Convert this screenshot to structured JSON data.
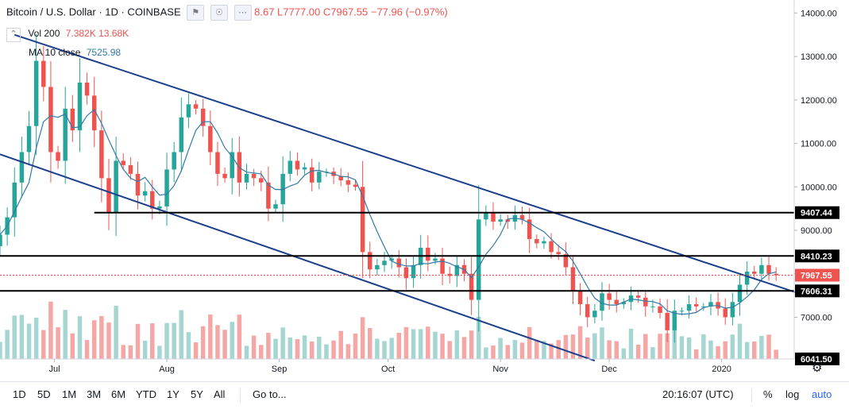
{
  "legend": {
    "symbol": "Bitcoin / U.S. Dollar · 1D · COINBASE",
    "ohlc": "8.67 L7777.00 C7967.55 −77.96 (−0.97%)",
    "vol_label": "Vol 200",
    "vol_values": "7.382K 13.68K",
    "ma_label": "MA 10 close",
    "ma_value": "7525.98"
  },
  "toolbar": {
    "timeframes": [
      "1D",
      "5D",
      "1M",
      "3M",
      "6M",
      "YTD",
      "1Y",
      "5Y",
      "All"
    ],
    "goto": "Go to...",
    "clock": "20:16:07 (UTC)",
    "percent": "%",
    "log": "log",
    "auto": "auto"
  },
  "colors": {
    "up": "#26a69a",
    "down": "#ef5350",
    "vol_up": "#a5d6d1",
    "vol_down": "#f5a7a5",
    "ma": "#3179a8",
    "trend": "#1c3f8c",
    "level": "#000000",
    "grid": "#ffffff",
    "axis_text": "#131722"
  },
  "chart_data": {
    "type": "candlestick",
    "title": "Bitcoin / U.S. Dollar · 1D · COINBASE",
    "x_labels": [
      "Jul",
      "Aug",
      "Sep",
      "Oct",
      "Nov",
      "Dec",
      "2020"
    ],
    "y_ticks": [
      7000,
      8000,
      9000,
      10000,
      11000,
      12000,
      13000,
      14000
    ],
    "y_tick_labels": [
      "7000.00",
      "8000.00",
      "9000.00",
      "10000.00",
      "11000.00",
      "12000.00",
      "13000.00",
      "14000.00"
    ],
    "ylim": [
      6040,
      14300
    ],
    "x_range": [
      "2019-06-16",
      "2020-01-21"
    ],
    "last_close": 7967.55,
    "ma_10_close": 7525.98,
    "price_labels": [
      {
        "text": "9407.44",
        "value": 9407.44,
        "type": "level"
      },
      {
        "text": "8410.23",
        "value": 8410.23,
        "type": "level"
      },
      {
        "text": "7967.55",
        "value": 7967.55,
        "type": "last"
      },
      {
        "text": "7606.31",
        "value": 7606.31,
        "type": "level"
      },
      {
        "text": "6041.50",
        "value": 6041.5,
        "type": "level"
      }
    ],
    "horizontal_levels": [
      {
        "value": 9407.44,
        "start": "2019-07-12"
      },
      {
        "value": 8410.23,
        "start": "2019-06-16"
      },
      {
        "value": 7606.31,
        "start": "2019-06-16"
      }
    ],
    "trendlines": [
      {
        "name": "upper",
        "points": [
          [
            "2019-06-20",
            13500
          ],
          [
            "2020-01-23",
            7530
          ]
        ]
      },
      {
        "name": "lower",
        "points": [
          [
            "2019-06-16",
            10750
          ],
          [
            "2019-11-27",
            6000
          ]
        ]
      }
    ],
    "closes": [
      {
        "date": "2019-06-16",
        "close": 8900
      },
      {
        "date": "2019-06-18",
        "close": 9300
      },
      {
        "date": "2019-06-20",
        "close": 10100
      },
      {
        "date": "2019-06-22",
        "close": 10800
      },
      {
        "date": "2019-06-24",
        "close": 11400
      },
      {
        "date": "2019-06-26",
        "close": 12900
      },
      {
        "date": "2019-06-28",
        "close": 12300
      },
      {
        "date": "2019-06-30",
        "close": 10800
      },
      {
        "date": "2019-07-02",
        "close": 10600
      },
      {
        "date": "2019-07-04",
        "close": 11800
      },
      {
        "date": "2019-07-06",
        "close": 11300
      },
      {
        "date": "2019-07-08",
        "close": 12400
      },
      {
        "date": "2019-07-10",
        "close": 12100
      },
      {
        "date": "2019-07-12",
        "close": 11300
      },
      {
        "date": "2019-07-14",
        "close": 10200
      },
      {
        "date": "2019-07-16",
        "close": 9400
      },
      {
        "date": "2019-07-18",
        "close": 10600
      },
      {
        "date": "2019-07-20",
        "close": 10500
      },
      {
        "date": "2019-07-22",
        "close": 10300
      },
      {
        "date": "2019-07-24",
        "close": 9800
      },
      {
        "date": "2019-07-26",
        "close": 9900
      },
      {
        "date": "2019-07-28",
        "close": 9500
      },
      {
        "date": "2019-07-30",
        "close": 9550
      },
      {
        "date": "2019-08-01",
        "close": 10400
      },
      {
        "date": "2019-08-03",
        "close": 10800
      },
      {
        "date": "2019-08-05",
        "close": 11600
      },
      {
        "date": "2019-08-07",
        "close": 11900
      },
      {
        "date": "2019-08-09",
        "close": 11800
      },
      {
        "date": "2019-08-11",
        "close": 11400
      },
      {
        "date": "2019-08-13",
        "close": 10800
      },
      {
        "date": "2019-08-15",
        "close": 10300
      },
      {
        "date": "2019-08-17",
        "close": 10200
      },
      {
        "date": "2019-08-19",
        "close": 10800
      },
      {
        "date": "2019-08-21",
        "close": 10100
      },
      {
        "date": "2019-08-23",
        "close": 10300
      },
      {
        "date": "2019-08-25",
        "close": 10200
      },
      {
        "date": "2019-08-27",
        "close": 10100
      },
      {
        "date": "2019-08-29",
        "close": 9500
      },
      {
        "date": "2019-08-31",
        "close": 9600
      },
      {
        "date": "2019-09-02",
        "close": 10300
      },
      {
        "date": "2019-09-04",
        "close": 10600
      },
      {
        "date": "2019-09-06",
        "close": 10400
      },
      {
        "date": "2019-09-08",
        "close": 10450
      },
      {
        "date": "2019-09-10",
        "close": 10100
      },
      {
        "date": "2019-09-12",
        "close": 10350
      },
      {
        "date": "2019-09-14",
        "close": 10350
      },
      {
        "date": "2019-09-16",
        "close": 10250
      },
      {
        "date": "2019-09-18",
        "close": 10150
      },
      {
        "date": "2019-09-20",
        "close": 10050
      },
      {
        "date": "2019-09-22",
        "close": 10000
      },
      {
        "date": "2019-09-24",
        "close": 8500
      },
      {
        "date": "2019-09-26",
        "close": 8100
      },
      {
        "date": "2019-09-28",
        "close": 8200
      },
      {
        "date": "2019-09-30",
        "close": 8300
      },
      {
        "date": "2019-10-02",
        "close": 8350
      },
      {
        "date": "2019-10-04",
        "close": 8150
      },
      {
        "date": "2019-10-06",
        "close": 7900
      },
      {
        "date": "2019-10-08",
        "close": 8200
      },
      {
        "date": "2019-10-10",
        "close": 8600
      },
      {
        "date": "2019-10-12",
        "close": 8300
      },
      {
        "date": "2019-10-14",
        "close": 8350
      },
      {
        "date": "2019-10-16",
        "close": 8000
      },
      {
        "date": "2019-10-18",
        "close": 7950
      },
      {
        "date": "2019-10-20",
        "close": 8200
      },
      {
        "date": "2019-10-22",
        "close": 8000
      },
      {
        "date": "2019-10-24",
        "close": 7400
      },
      {
        "date": "2019-10-26",
        "close": 9250
      },
      {
        "date": "2019-10-28",
        "close": 9400
      },
      {
        "date": "2019-10-30",
        "close": 9200
      },
      {
        "date": "2019-11-01",
        "close": 9250
      },
      {
        "date": "2019-11-03",
        "close": 9200
      },
      {
        "date": "2019-11-05",
        "close": 9350
      },
      {
        "date": "2019-11-07",
        "close": 9250
      },
      {
        "date": "2019-11-09",
        "close": 8800
      },
      {
        "date": "2019-11-11",
        "close": 8700
      },
      {
        "date": "2019-11-13",
        "close": 8750
      },
      {
        "date": "2019-11-15",
        "close": 8500
      },
      {
        "date": "2019-11-17",
        "close": 8450
      },
      {
        "date": "2019-11-19",
        "close": 8150
      },
      {
        "date": "2019-11-21",
        "close": 7600
      },
      {
        "date": "2019-11-23",
        "close": 7300
      },
      {
        "date": "2019-11-25",
        "close": 7000
      },
      {
        "date": "2019-11-27",
        "close": 7150
      },
      {
        "date": "2019-11-29",
        "close": 7550
      },
      {
        "date": "2019-12-01",
        "close": 7400
      },
      {
        "date": "2019-12-03",
        "close": 7300
      },
      {
        "date": "2019-12-05",
        "close": 7350
      },
      {
        "date": "2019-12-07",
        "close": 7500
      },
      {
        "date": "2019-12-09",
        "close": 7450
      },
      {
        "date": "2019-12-11",
        "close": 7250
      },
      {
        "date": "2019-12-13",
        "close": 7250
      },
      {
        "date": "2019-12-15",
        "close": 7100
      },
      {
        "date": "2019-12-17",
        "close": 6700
      },
      {
        "date": "2019-12-19",
        "close": 7150
      },
      {
        "date": "2019-12-21",
        "close": 7150
      },
      {
        "date": "2019-12-23",
        "close": 7300
      },
      {
        "date": "2019-12-25",
        "close": 7250
      },
      {
        "date": "2019-12-27",
        "close": 7250
      },
      {
        "date": "2019-12-29",
        "close": 7350
      },
      {
        "date": "2019-12-31",
        "close": 7200
      },
      {
        "date": "2020-01-02",
        "close": 7000
      },
      {
        "date": "2020-01-04",
        "close": 7350
      },
      {
        "date": "2020-01-06",
        "close": 7750
      },
      {
        "date": "2020-01-08",
        "close": 8050
      },
      {
        "date": "2020-01-10",
        "close": 8000
      },
      {
        "date": "2020-01-12",
        "close": 8200
      },
      {
        "date": "2020-01-14",
        "close": 8000
      },
      {
        "date": "2020-01-16",
        "close": 7967.55
      }
    ]
  }
}
